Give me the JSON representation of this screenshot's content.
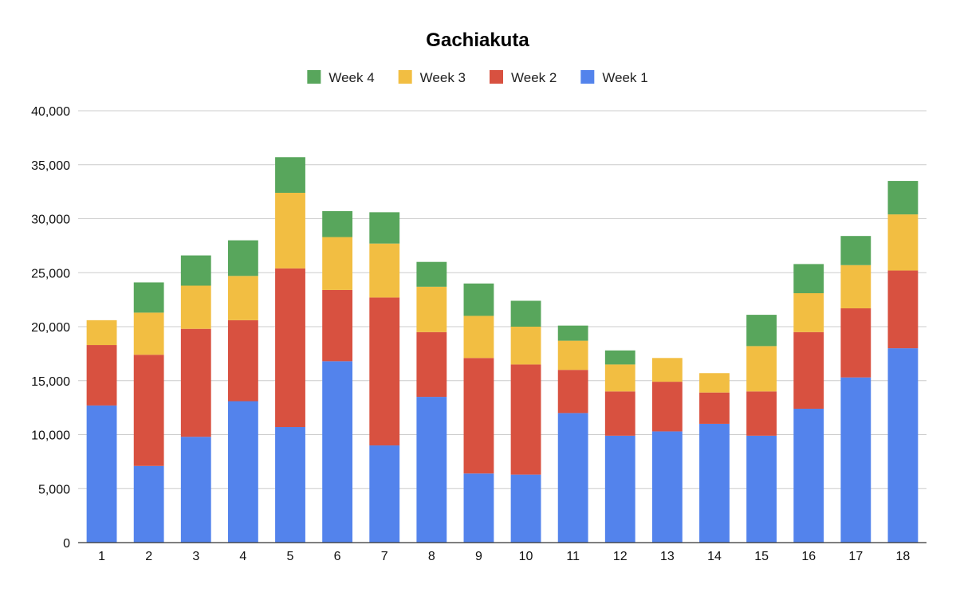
{
  "chart_data": {
    "type": "bar",
    "stacked": true,
    "title": "Gachiakuta",
    "xlabel": "",
    "ylabel": "",
    "ylim": [
      0,
      40000
    ],
    "yticks": [
      0,
      5000,
      10000,
      15000,
      20000,
      25000,
      30000,
      35000,
      40000
    ],
    "ytick_labels": [
      "0",
      "5,000",
      "10,000",
      "15,000",
      "20,000",
      "25,000",
      "30,000",
      "35,000",
      "40,000"
    ],
    "grid": true,
    "legend_position": "top-center",
    "legend_order": [
      "Week 4",
      "Week 3",
      "Week 2",
      "Week 1"
    ],
    "categories": [
      "1",
      "2",
      "3",
      "4",
      "5",
      "6",
      "7",
      "8",
      "9",
      "10",
      "11",
      "12",
      "13",
      "14",
      "15",
      "16",
      "17",
      "18"
    ],
    "series": [
      {
        "name": "Week 1",
        "color": "#5383EC",
        "values": [
          12700,
          7100,
          9800,
          13100,
          10700,
          16800,
          9000,
          13500,
          6400,
          6300,
          12000,
          9900,
          10300,
          11000,
          9900,
          12400,
          15300,
          18000
        ]
      },
      {
        "name": "Week 2",
        "color": "#D85140",
        "values": [
          5600,
          10300,
          10000,
          7500,
          14700,
          6600,
          13700,
          6000,
          10700,
          10200,
          4000,
          4100,
          4600,
          2900,
          4100,
          7100,
          6400,
          7200
        ]
      },
      {
        "name": "Week 3",
        "color": "#F2BE42",
        "values": [
          2300,
          3900,
          4000,
          4100,
          7000,
          4900,
          5000,
          4200,
          3900,
          3500,
          2700,
          2500,
          2200,
          1800,
          4200,
          3600,
          4000,
          5200
        ]
      },
      {
        "name": "Week 4",
        "color": "#58A65C",
        "values": [
          0,
          2800,
          2800,
          3300,
          3300,
          2400,
          2900,
          2300,
          3000,
          2400,
          1400,
          1300,
          0,
          0,
          2900,
          2700,
          2700,
          3100
        ]
      }
    ]
  }
}
